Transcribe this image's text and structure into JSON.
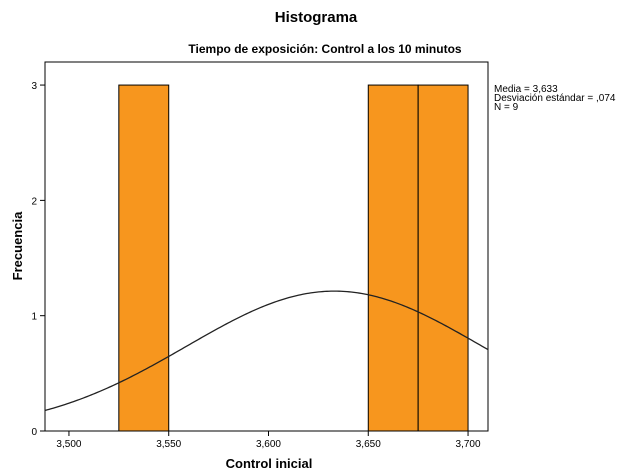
{
  "chart_data": {
    "type": "bar",
    "title": "Histograma",
    "subtitle": "Tiempo de exposición: Control a los 10 minutos",
    "xlabel": "Control inicial",
    "ylabel": "Frecuencia",
    "xlim": [
      3.488,
      3.71
    ],
    "ylim": [
      0,
      3.2
    ],
    "x_ticks": [
      3.5,
      3.55,
      3.6,
      3.65,
      3.7
    ],
    "x_tick_labels": [
      "3,500",
      "3,550",
      "3,600",
      "3,650",
      "3,700"
    ],
    "y_ticks": [
      0,
      1,
      2,
      3
    ],
    "y_tick_labels": [
      "0",
      "1",
      "2",
      "3"
    ],
    "bins": [
      {
        "start": 3.525,
        "end": 3.55,
        "count": 3
      },
      {
        "start": 3.65,
        "end": 3.675,
        "count": 3
      },
      {
        "start": 3.675,
        "end": 3.7,
        "count": 3
      }
    ],
    "bar_color": "#f7961e",
    "normal_curve": {
      "mean": 3.633,
      "std": 0.074,
      "n": 9,
      "bin_width": 0.025
    },
    "grid": false,
    "stats": {
      "mean_label": "Media = 3,633",
      "std_label": "Desviación estándar = ,074",
      "n_label": "N = 9"
    }
  }
}
